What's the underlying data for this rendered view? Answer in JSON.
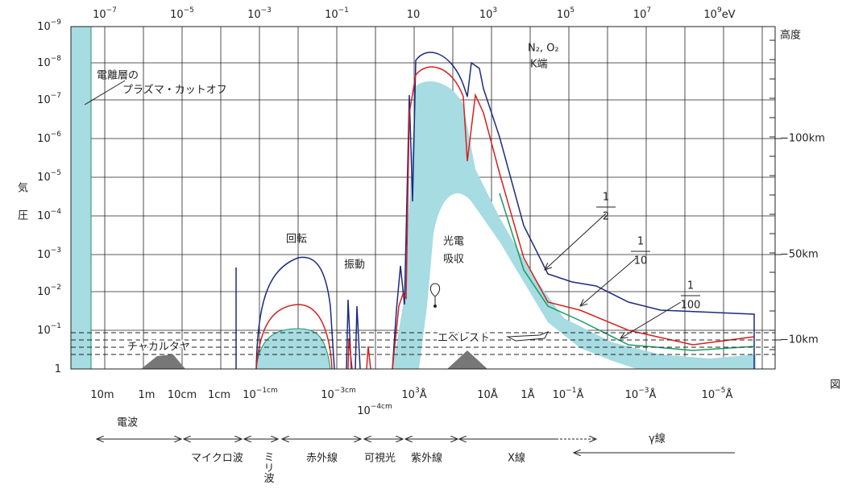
{
  "left_axis": {
    "label_chars": [
      "気",
      "圧"
    ],
    "ticks": [
      {
        "base": "10",
        "exp": "−9"
      },
      {
        "base": "10",
        "exp": "−8"
      },
      {
        "base": "10",
        "exp": "−7"
      },
      {
        "base": "10",
        "exp": "−6"
      },
      {
        "base": "10",
        "exp": "−5"
      },
      {
        "base": "10",
        "exp": "−4"
      },
      {
        "base": "10",
        "exp": "−3"
      },
      {
        "base": "10",
        "exp": "−2"
      },
      {
        "base": "10",
        "exp": "−1"
      },
      {
        "base": "1"
      }
    ]
  },
  "top_axis": {
    "ticks": [
      {
        "base": "10",
        "exp": "−7"
      },
      {
        "base": "10",
        "exp": "−5"
      },
      {
        "base": "10",
        "exp": "−3"
      },
      {
        "base": "10",
        "exp": "−1"
      },
      {
        "base": "10"
      },
      {
        "base": "10",
        "exp": "3"
      },
      {
        "base": "10",
        "exp": "5"
      },
      {
        "base": "10",
        "exp": "7"
      },
      {
        "base": "10",
        "exp": "9",
        "unit": "eV"
      }
    ]
  },
  "right_axis": {
    "title": "高度",
    "ticks": [
      "−100km",
      "−50km",
      "−10km"
    ]
  },
  "bottom_axis": {
    "ticks": [
      {
        "base": "10m"
      },
      {
        "base": "1m"
      },
      {
        "base": "10cm"
      },
      {
        "base": "1cm"
      },
      {
        "base": "10",
        "exp": "−1cm"
      },
      {
        "base": "10",
        "exp": "−3cm"
      },
      {
        "base": "10",
        "exp": "−4cm"
      },
      {
        "base": "10",
        "exp": "3",
        "unit": "Å"
      },
      {
        "base": "10Å"
      },
      {
        "base": "1Å"
      },
      {
        "base": "10",
        "exp": "−1",
        "unit": "Å"
      },
      {
        "base": "10",
        "exp": "−3",
        "unit": "Å"
      },
      {
        "base": "10",
        "exp": "−5",
        "unit": "Å"
      }
    ]
  },
  "annotations": {
    "ionosphere": [
      "電離層の",
      "プラズマ・カットオフ"
    ],
    "rotation": "回転",
    "vibration": "振動",
    "photo": [
      "光電",
      "吸収"
    ],
    "chacaltaya": "チャカルタヤ",
    "everest": "エベレスト",
    "k_edge": [
      "N₂, O₂",
      "K端"
    ],
    "fractions": [
      {
        "num": "1",
        "den": "2"
      },
      {
        "num": "1",
        "den": "10"
      },
      {
        "num": "1",
        "den": "100"
      }
    ],
    "figure": "図"
  },
  "bands": [
    "電波",
    "マイクロ波",
    "ミリ波",
    "赤外線",
    "可視光",
    "紫外線",
    "X線",
    "γ線"
  ]
}
